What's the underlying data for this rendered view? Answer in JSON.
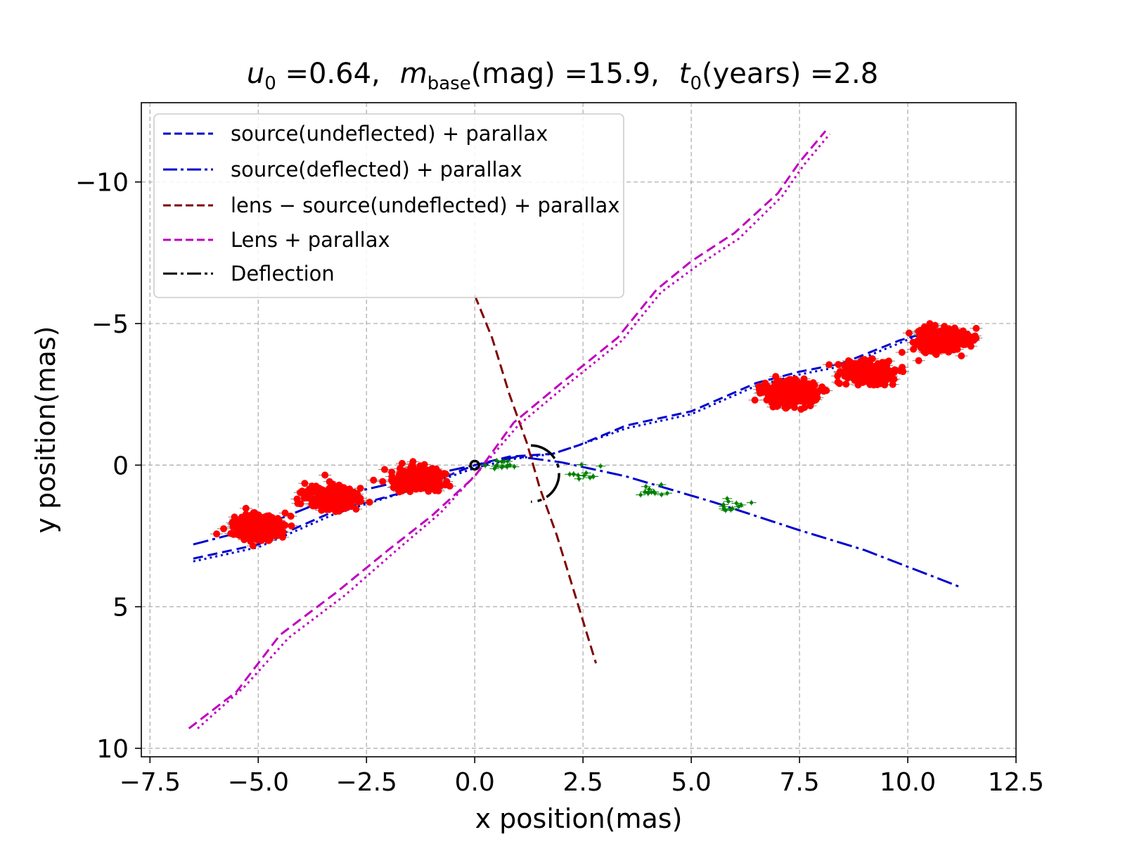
{
  "chart_data": {
    "type": "line",
    "title": {
      "u0_symbol": "u",
      "u0_sub": "0",
      "u0_value": " =0.64,",
      "m_symbol": "m",
      "m_sub": "base",
      "m_value": "(mag) =15.9,",
      "t_symbol": "t",
      "t_sub": "0",
      "t_value": "(years) =2.8"
    },
    "xlabel": "x position(mas)",
    "ylabel": "y position(mas)",
    "xlim": [
      -7.7,
      12.5
    ],
    "ylim": [
      10.3,
      -12.8
    ],
    "y_inverted": true,
    "grid": true,
    "xticks": [
      {
        "value": -7.5,
        "label": "−7.5"
      },
      {
        "value": -5.0,
        "label": "−5.0"
      },
      {
        "value": -2.5,
        "label": "−2.5"
      },
      {
        "value": 0.0,
        "label": "0.0"
      },
      {
        "value": 2.5,
        "label": "2.5"
      },
      {
        "value": 5.0,
        "label": "5.0"
      },
      {
        "value": 7.5,
        "label": "7.5"
      },
      {
        "value": 10.0,
        "label": "10.0"
      },
      {
        "value": 12.5,
        "label": "12.5"
      }
    ],
    "yticks": [
      {
        "value": -10,
        "label": "−10"
      },
      {
        "value": -5,
        "label": "−5"
      },
      {
        "value": 0,
        "label": "0"
      },
      {
        "value": 5,
        "label": "5"
      },
      {
        "value": 10,
        "label": "10"
      }
    ],
    "legend": {
      "placement": "top-left",
      "entries": [
        {
          "label": "source(undeflected) + parallax",
          "color": "#0000cd",
          "dash": "dashed"
        },
        {
          "label": "source(deflected) + parallax",
          "color": "#0000cd",
          "dash": "dashdot"
        },
        {
          "label": "lens − source(undeflected) + parallax",
          "color": "#800000",
          "dash": "dashed"
        },
        {
          "label": "Lens + parallax",
          "color": "#bf00bf",
          "dash": "dashed"
        },
        {
          "label": "Deflection",
          "color": "#000000",
          "dash": "dashdot"
        }
      ]
    },
    "series": [
      {
        "name": "source(undeflected) + parallax",
        "color": "#0000cd",
        "dash": "dashed",
        "points": [
          [
            -6.5,
            3.3
          ],
          [
            -5.0,
            2.8
          ],
          [
            -3.2,
            1.6
          ],
          [
            -1.5,
            0.9
          ],
          [
            0.0,
            0.0
          ],
          [
            0.8,
            -0.3
          ],
          [
            1.8,
            -0.4
          ],
          [
            2.4,
            -0.7
          ],
          [
            3.5,
            -1.4
          ],
          [
            5.0,
            -1.9
          ],
          [
            6.5,
            -2.9
          ],
          [
            7.5,
            -3.3
          ],
          [
            8.5,
            -3.6
          ],
          [
            9.8,
            -4.4
          ],
          [
            10.7,
            -4.8
          ]
        ]
      },
      {
        "name": "source(undeflected) + parallax (dotted)",
        "color": "#0000cd",
        "dash": "dotted",
        "points": [
          [
            -6.5,
            3.4
          ],
          [
            -5.0,
            2.9
          ],
          [
            -3.2,
            1.7
          ],
          [
            -1.5,
            0.9
          ],
          [
            0.0,
            0.1
          ],
          [
            0.8,
            -0.2
          ],
          [
            1.8,
            -0.4
          ],
          [
            2.4,
            -0.7
          ],
          [
            3.5,
            -1.3
          ],
          [
            5.0,
            -1.8
          ],
          [
            6.5,
            -2.8
          ],
          [
            7.5,
            -3.2
          ],
          [
            8.5,
            -3.5
          ],
          [
            9.8,
            -4.3
          ],
          [
            10.7,
            -4.9
          ]
        ]
      },
      {
        "name": "source(deflected) + parallax",
        "color": "#0000cd",
        "dash": "dashdot",
        "points": [
          [
            -6.5,
            2.8
          ],
          [
            -5.0,
            2.2
          ],
          [
            -3.2,
            1.1
          ],
          [
            -1.5,
            0.5
          ],
          [
            0.0,
            0.0
          ],
          [
            1.0,
            -0.3
          ],
          [
            2.0,
            -0.1
          ],
          [
            3.5,
            0.4
          ],
          [
            5.5,
            1.3
          ],
          [
            6.5,
            1.8
          ],
          [
            7.5,
            2.3
          ],
          [
            9.0,
            3.0
          ],
          [
            10.7,
            4.0
          ],
          [
            11.2,
            4.3
          ]
        ]
      },
      {
        "name": "lens − source(undeflected) + parallax",
        "color": "#800000",
        "dash": "dashed",
        "points": [
          [
            0.0,
            -6.0
          ],
          [
            0.4,
            -4.5
          ],
          [
            0.8,
            -2.5
          ],
          [
            1.2,
            -0.8
          ],
          [
            1.5,
            0.8
          ],
          [
            1.9,
            2.5
          ],
          [
            2.4,
            5.0
          ],
          [
            2.8,
            7.0
          ]
        ]
      },
      {
        "name": "Lens + parallax",
        "color": "#bf00bf",
        "dash": "dashed",
        "points": [
          [
            -6.6,
            9.3
          ],
          [
            -5.5,
            8.0
          ],
          [
            -4.5,
            6.0
          ],
          [
            -3.2,
            4.5
          ],
          [
            -2.0,
            3.0
          ],
          [
            -1.0,
            1.8
          ],
          [
            0.0,
            0.4
          ],
          [
            0.9,
            -1.5
          ],
          [
            2.0,
            -2.9
          ],
          [
            3.3,
            -4.5
          ],
          [
            4.2,
            -6.2
          ],
          [
            5.0,
            -7.2
          ],
          [
            6.0,
            -8.2
          ],
          [
            7.0,
            -9.6
          ],
          [
            7.5,
            -10.7
          ],
          [
            8.1,
            -11.8
          ]
        ]
      },
      {
        "name": "Lens + parallax (dotted)",
        "color": "#bf00bf",
        "dash": "dotted",
        "points": [
          [
            -6.4,
            9.3
          ],
          [
            -5.3,
            7.8
          ],
          [
            -4.3,
            6.1
          ],
          [
            -3.0,
            4.6
          ],
          [
            -1.8,
            3.0
          ],
          [
            -0.8,
            1.7
          ],
          [
            0.1,
            0.2
          ],
          [
            1.0,
            -1.4
          ],
          [
            2.1,
            -2.8
          ],
          [
            3.4,
            -4.4
          ],
          [
            4.3,
            -6.1
          ],
          [
            5.1,
            -7.0
          ],
          [
            6.1,
            -8.0
          ],
          [
            7.1,
            -9.5
          ],
          [
            7.6,
            -10.6
          ],
          [
            8.2,
            -11.7
          ]
        ]
      }
    ],
    "deflection_arc": {
      "center": [
        1.2,
        0.3
      ],
      "radius": 0.65,
      "color": "#000000"
    },
    "origin_marker": {
      "x": 0.0,
      "y": 0.0,
      "color": "#000000"
    },
    "red_clusters": [
      {
        "x": -5.0,
        "y": 2.2,
        "count": 380
      },
      {
        "x": -3.3,
        "y": 1.15,
        "count": 380
      },
      {
        "x": -1.3,
        "y": 0.5,
        "count": 320
      },
      {
        "x": 7.3,
        "y": -2.55,
        "count": 380
      },
      {
        "x": 9.1,
        "y": -3.25,
        "count": 320
      },
      {
        "x": 10.8,
        "y": -4.4,
        "count": 380
      }
    ],
    "green_clusters": [
      {
        "x": 0.6,
        "y": 0.0,
        "count": 14
      },
      {
        "x": 2.5,
        "y": 0.35,
        "count": 12
      },
      {
        "x": 4.0,
        "y": 0.9,
        "count": 12
      },
      {
        "x": 5.8,
        "y": 1.45,
        "count": 12
      }
    ],
    "colors": {
      "red_points": "#ff0000",
      "red_errorbars": "#808080",
      "green_points": "#008000",
      "grid": "#b0b0b0",
      "legend_border": "#cccccc"
    }
  }
}
